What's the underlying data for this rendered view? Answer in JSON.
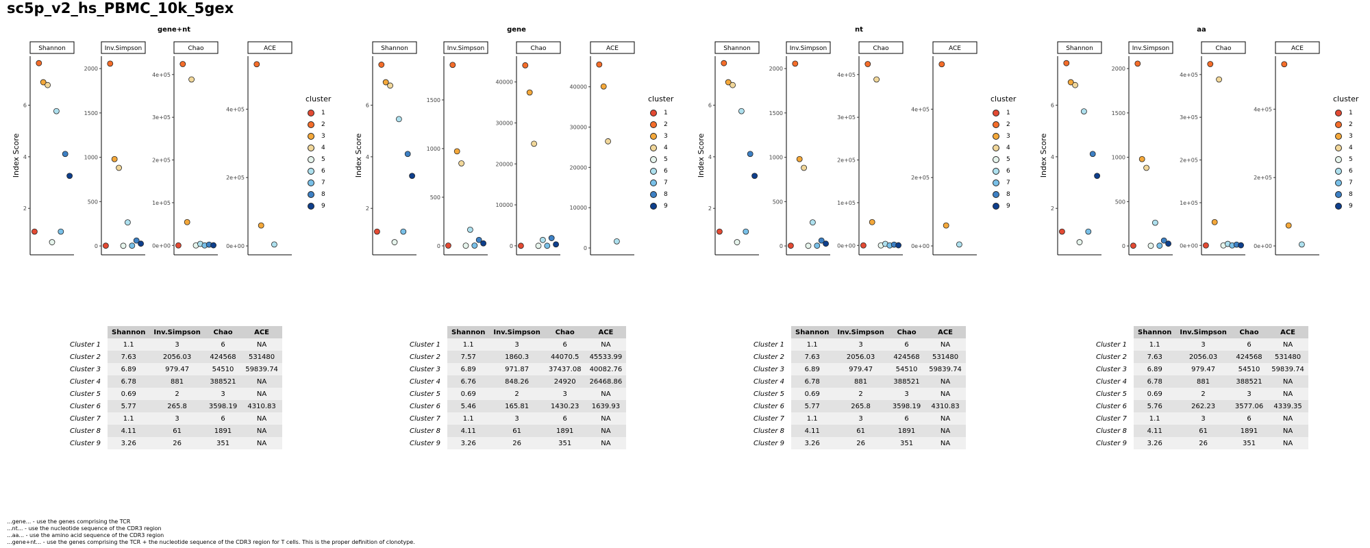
{
  "page": {
    "title": "sc5p_v2_hs_PBMC_10k_5gex"
  },
  "colors": {
    "cluster": [
      "#e34a33",
      "#f46d2a",
      "#f4a83a",
      "#f1d79a",
      "#e6f4ec",
      "#aee0ee",
      "#79c0e8",
      "#3d80c4",
      "#0e3f8c"
    ]
  },
  "legend": {
    "title": "cluster",
    "labels": [
      "1",
      "2",
      "3",
      "4",
      "5",
      "6",
      "7",
      "8",
      "9"
    ]
  },
  "chart_data": [
    {
      "type": "scatter",
      "title": "gene+nt",
      "ylabel": "Index Score",
      "facets": [
        {
          "name": "Shannon",
          "ylim": [
            0.2,
            7.9
          ],
          "ticks": [
            2,
            4,
            6
          ],
          "tick_labels": [
            "2",
            "4",
            "6"
          ],
          "values": [
            1.1,
            7.63,
            6.89,
            6.78,
            0.69,
            5.77,
            1.1,
            4.11,
            3.26
          ]
        },
        {
          "name": "Inv.Simpson",
          "ylim": [
            -100,
            2140
          ],
          "ticks": [
            0,
            500,
            1000,
            1500,
            2000
          ],
          "tick_labels": [
            "0",
            "500",
            "1000",
            "1500",
            "2000"
          ],
          "values": [
            3,
            2056.03,
            979.47,
            881,
            2,
            265.8,
            3,
            61,
            26
          ]
        },
        {
          "name": "Chao",
          "ylim": [
            -22000,
            443000
          ],
          "ticks": [
            0,
            100000,
            200000,
            300000,
            400000
          ],
          "tick_labels": [
            "0e+00",
            "1e+05",
            "2e+05",
            "3e+05",
            "4e+05"
          ],
          "values": [
            6,
            424568,
            54510,
            388521,
            3,
            3598.19,
            6,
            1891,
            351
          ]
        },
        {
          "name": "ACE",
          "ylim": [
            -26000,
            555000
          ],
          "ticks": [
            0,
            200000,
            400000
          ],
          "tick_labels": [
            "0e+00",
            "2e+05",
            "4e+05"
          ],
          "values": [
            null,
            531480,
            59839.74,
            null,
            null,
            4310.83,
            null,
            null,
            null
          ]
        }
      ]
    },
    {
      "type": "scatter",
      "title": "gene",
      "ylabel": "Index Score",
      "facets": [
        {
          "name": "Shannon",
          "ylim": [
            0.2,
            7.9
          ],
          "ticks": [
            2,
            4,
            6
          ],
          "tick_labels": [
            "2",
            "4",
            "6"
          ],
          "values": [
            1.1,
            7.57,
            6.89,
            6.76,
            0.69,
            5.46,
            1.1,
            4.11,
            3.26
          ]
        },
        {
          "name": "Inv.Simpson",
          "ylim": [
            -92,
            1950
          ],
          "ticks": [
            0,
            500,
            1000,
            1500
          ],
          "tick_labels": [
            "0",
            "500",
            "1000",
            "1500"
          ],
          "values": [
            3,
            1860.3,
            971.87,
            848.26,
            2,
            165.81,
            3,
            61,
            26
          ]
        },
        {
          "name": "Chao",
          "ylim": [
            -2200,
            46300
          ],
          "ticks": [
            0,
            10000,
            20000,
            30000,
            40000
          ],
          "tick_labels": [
            "0",
            "10000",
            "20000",
            "30000",
            "40000"
          ],
          "values": [
            6,
            44070.5,
            37437.08,
            24920,
            3,
            1430.23,
            6,
            1891,
            351
          ]
        },
        {
          "name": "ACE",
          "ylim": [
            -1700,
            47600
          ],
          "ticks": [
            0,
            10000,
            20000,
            30000,
            40000
          ],
          "tick_labels": [
            "0",
            "10000",
            "20000",
            "30000",
            "40000"
          ],
          "values": [
            null,
            45533.99,
            40082.76,
            26468.86,
            null,
            1639.93,
            null,
            null,
            null
          ]
        }
      ]
    },
    {
      "type": "scatter",
      "title": "nt",
      "ylabel": "Index Score",
      "facets": [
        {
          "name": "Shannon",
          "ylim": [
            0.2,
            7.9
          ],
          "ticks": [
            2,
            4,
            6
          ],
          "tick_labels": [
            "2",
            "4",
            "6"
          ],
          "values": [
            1.1,
            7.63,
            6.89,
            6.78,
            0.69,
            5.77,
            1.1,
            4.11,
            3.26
          ]
        },
        {
          "name": "Inv.Simpson",
          "ylim": [
            -100,
            2140
          ],
          "ticks": [
            0,
            500,
            1000,
            1500,
            2000
          ],
          "tick_labels": [
            "0",
            "500",
            "1000",
            "1500",
            "2000"
          ],
          "values": [
            3,
            2056.03,
            979.47,
            881,
            2,
            265.8,
            3,
            61,
            26
          ]
        },
        {
          "name": "Chao",
          "ylim": [
            -22000,
            443000
          ],
          "ticks": [
            0,
            100000,
            200000,
            300000,
            400000
          ],
          "tick_labels": [
            "0e+00",
            "1e+05",
            "2e+05",
            "3e+05",
            "4e+05"
          ],
          "values": [
            6,
            424568,
            54510,
            388521,
            3,
            3598.19,
            6,
            1891,
            351
          ]
        },
        {
          "name": "ACE",
          "ylim": [
            -26000,
            555000
          ],
          "ticks": [
            0,
            200000,
            400000
          ],
          "tick_labels": [
            "0e+00",
            "2e+05",
            "4e+05"
          ],
          "values": [
            null,
            531480,
            59839.74,
            null,
            null,
            4310.83,
            null,
            null,
            null
          ]
        }
      ]
    },
    {
      "type": "scatter",
      "title": "aa",
      "ylabel": "Index Score",
      "facets": [
        {
          "name": "Shannon",
          "ylim": [
            0.2,
            7.9
          ],
          "ticks": [
            2,
            4,
            6
          ],
          "tick_labels": [
            "2",
            "4",
            "6"
          ],
          "values": [
            1.1,
            7.63,
            6.89,
            6.78,
            0.69,
            5.76,
            1.1,
            4.11,
            3.26
          ]
        },
        {
          "name": "Inv.Simpson",
          "ylim": [
            -100,
            2140
          ],
          "ticks": [
            0,
            500,
            1000,
            1500,
            2000
          ],
          "tick_labels": [
            "0",
            "500",
            "1000",
            "1500",
            "2000"
          ],
          "values": [
            3,
            2056.03,
            979.47,
            881,
            2,
            262.23,
            3,
            61,
            26
          ]
        },
        {
          "name": "Chao",
          "ylim": [
            -22000,
            443000
          ],
          "ticks": [
            0,
            100000,
            200000,
            300000,
            400000
          ],
          "tick_labels": [
            "0e+00",
            "1e+05",
            "2e+05",
            "3e+05",
            "4e+05"
          ],
          "values": [
            6,
            424568,
            54510,
            388521,
            3,
            3577.06,
            6,
            1891,
            351
          ]
        },
        {
          "name": "ACE",
          "ylim": [
            -26000,
            555000
          ],
          "ticks": [
            0,
            200000,
            400000
          ],
          "tick_labels": [
            "0e+00",
            "2e+05",
            "4e+05"
          ],
          "values": [
            null,
            531480,
            59839.74,
            null,
            null,
            4339.35,
            null,
            null,
            null
          ]
        }
      ]
    }
  ],
  "tables": [
    {
      "columns": [
        "Shannon",
        "Inv.Simpson",
        "Chao",
        "ACE"
      ],
      "rows": [
        {
          "label": "Cluster 1",
          "cells": [
            "1.1",
            "3",
            "6",
            "NA"
          ]
        },
        {
          "label": "Cluster 2",
          "cells": [
            "7.63",
            "2056.03",
            "424568",
            "531480"
          ]
        },
        {
          "label": "Cluster 3",
          "cells": [
            "6.89",
            "979.47",
            "54510",
            "59839.74"
          ]
        },
        {
          "label": "Cluster 4",
          "cells": [
            "6.78",
            "881",
            "388521",
            "NA"
          ]
        },
        {
          "label": "Cluster 5",
          "cells": [
            "0.69",
            "2",
            "3",
            "NA"
          ]
        },
        {
          "label": "Cluster 6",
          "cells": [
            "5.77",
            "265.8",
            "3598.19",
            "4310.83"
          ]
        },
        {
          "label": "Cluster 7",
          "cells": [
            "1.1",
            "3",
            "6",
            "NA"
          ]
        },
        {
          "label": "Cluster 8",
          "cells": [
            "4.11",
            "61",
            "1891",
            "NA"
          ]
        },
        {
          "label": "Cluster 9",
          "cells": [
            "3.26",
            "26",
            "351",
            "NA"
          ]
        }
      ]
    },
    {
      "columns": [
        "Shannon",
        "Inv.Simpson",
        "Chao",
        "ACE"
      ],
      "rows": [
        {
          "label": "Cluster 1",
          "cells": [
            "1.1",
            "3",
            "6",
            "NA"
          ]
        },
        {
          "label": "Cluster 2",
          "cells": [
            "7.57",
            "1860.3",
            "44070.5",
            "45533.99"
          ]
        },
        {
          "label": "Cluster 3",
          "cells": [
            "6.89",
            "971.87",
            "37437.08",
            "40082.76"
          ]
        },
        {
          "label": "Cluster 4",
          "cells": [
            "6.76",
            "848.26",
            "24920",
            "26468.86"
          ]
        },
        {
          "label": "Cluster 5",
          "cells": [
            "0.69",
            "2",
            "3",
            "NA"
          ]
        },
        {
          "label": "Cluster 6",
          "cells": [
            "5.46",
            "165.81",
            "1430.23",
            "1639.93"
          ]
        },
        {
          "label": "Cluster 7",
          "cells": [
            "1.1",
            "3",
            "6",
            "NA"
          ]
        },
        {
          "label": "Cluster 8",
          "cells": [
            "4.11",
            "61",
            "1891",
            "NA"
          ]
        },
        {
          "label": "Cluster 9",
          "cells": [
            "3.26",
            "26",
            "351",
            "NA"
          ]
        }
      ]
    },
    {
      "columns": [
        "Shannon",
        "Inv.Simpson",
        "Chao",
        "ACE"
      ],
      "rows": [
        {
          "label": "Cluster 1",
          "cells": [
            "1.1",
            "3",
            "6",
            "NA"
          ]
        },
        {
          "label": "Cluster 2",
          "cells": [
            "7.63",
            "2056.03",
            "424568",
            "531480"
          ]
        },
        {
          "label": "Cluster 3",
          "cells": [
            "6.89",
            "979.47",
            "54510",
            "59839.74"
          ]
        },
        {
          "label": "Cluster 4",
          "cells": [
            "6.78",
            "881",
            "388521",
            "NA"
          ]
        },
        {
          "label": "Cluster 5",
          "cells": [
            "0.69",
            "2",
            "3",
            "NA"
          ]
        },
        {
          "label": "Cluster 6",
          "cells": [
            "5.77",
            "265.8",
            "3598.19",
            "4310.83"
          ]
        },
        {
          "label": "Cluster 7",
          "cells": [
            "1.1",
            "3",
            "6",
            "NA"
          ]
        },
        {
          "label": "Cluster 8",
          "cells": [
            "4.11",
            "61",
            "1891",
            "NA"
          ]
        },
        {
          "label": "Cluster 9",
          "cells": [
            "3.26",
            "26",
            "351",
            "NA"
          ]
        }
      ]
    },
    {
      "columns": [
        "Shannon",
        "Inv.Simpson",
        "Chao",
        "ACE"
      ],
      "rows": [
        {
          "label": "Cluster 1",
          "cells": [
            "1.1",
            "3",
            "6",
            "NA"
          ]
        },
        {
          "label": "Cluster 2",
          "cells": [
            "7.63",
            "2056.03",
            "424568",
            "531480"
          ]
        },
        {
          "label": "Cluster 3",
          "cells": [
            "6.89",
            "979.47",
            "54510",
            "59839.74"
          ]
        },
        {
          "label": "Cluster 4",
          "cells": [
            "6.78",
            "881",
            "388521",
            "NA"
          ]
        },
        {
          "label": "Cluster 5",
          "cells": [
            "0.69",
            "2",
            "3",
            "NA"
          ]
        },
        {
          "label": "Cluster 6",
          "cells": [
            "5.76",
            "262.23",
            "3577.06",
            "4339.35"
          ]
        },
        {
          "label": "Cluster 7",
          "cells": [
            "1.1",
            "3",
            "6",
            "NA"
          ]
        },
        {
          "label": "Cluster 8",
          "cells": [
            "4.11",
            "61",
            "1891",
            "NA"
          ]
        },
        {
          "label": "Cluster 9",
          "cells": [
            "3.26",
            "26",
            "351",
            "NA"
          ]
        }
      ]
    }
  ],
  "footnotes": [
    "...gene... - use the genes comprising the TCR",
    "...nt... - use the nucleotide sequence of the CDR3 region",
    "...aa... - use the amino acid sequence of the CDR3 region",
    "...gene+nt... - use the genes comprising the TCR + the nucleotide sequence of the CDR3 region for T cells. This is the proper definition of clonotype."
  ]
}
